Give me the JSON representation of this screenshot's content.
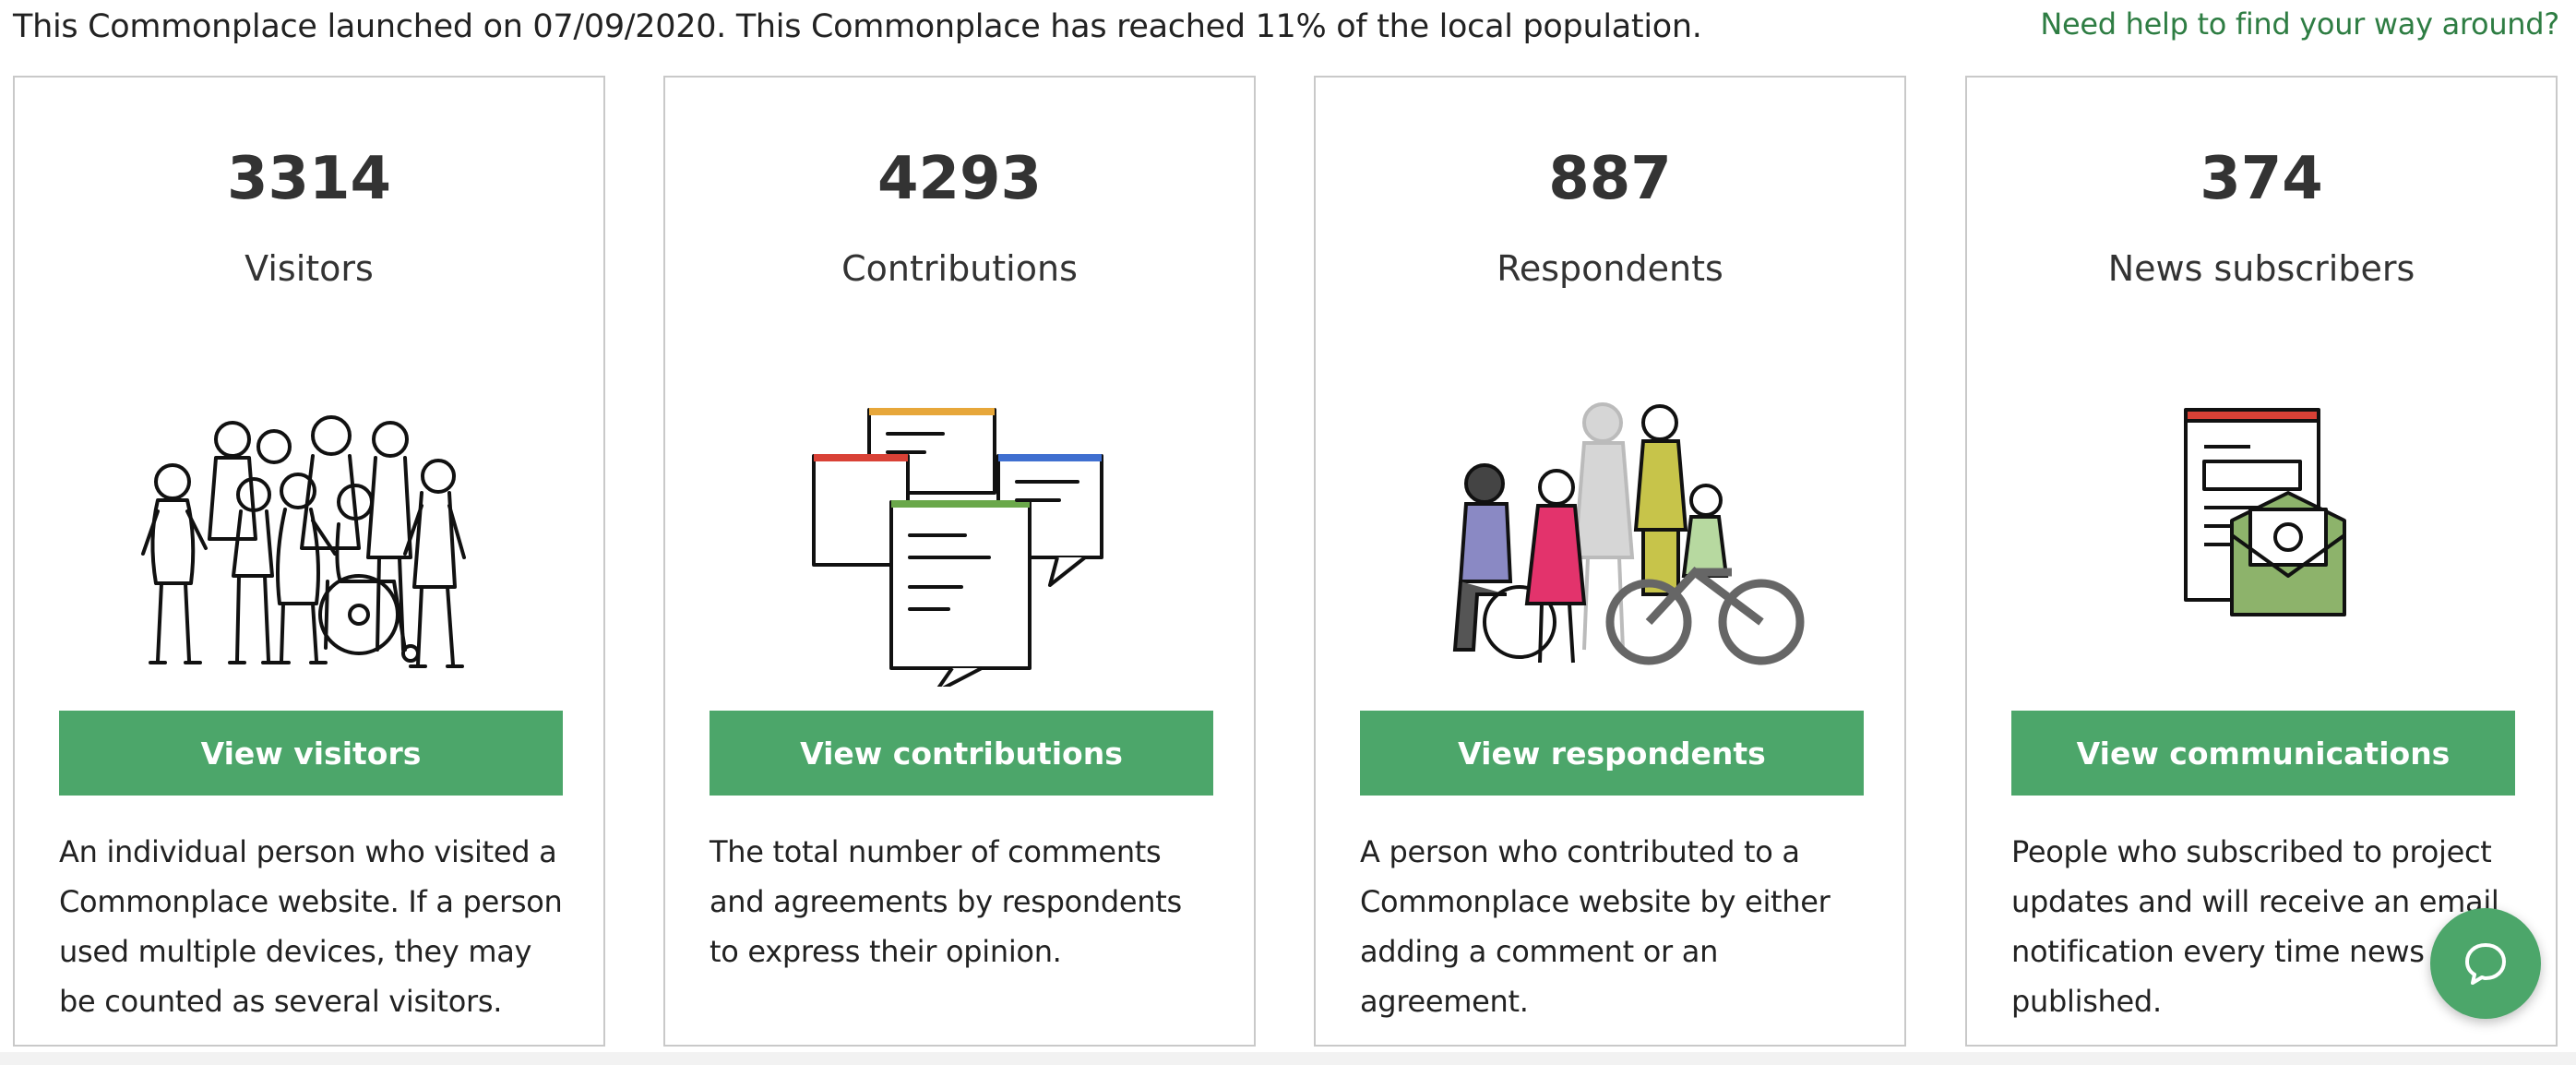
{
  "header": {
    "launch_text": "This Commonplace launched on 07/09/2020. This Commonplace has reached 11% of the local population.",
    "help_link": "Need help to find your way around?"
  },
  "cards": [
    {
      "value": "3314",
      "label": "Visitors",
      "illustration": "crowd-of-people-illustration",
      "button": "View visitors",
      "description": "An individual person who visited a Commonplace website. If a person used multiple devices, they may be counted as several visitors."
    },
    {
      "value": "4293",
      "label": "Contributions",
      "illustration": "speech-bubbles-illustration",
      "button": "View contributions",
      "description": "The total number of comments and agreements by respondents to express their opinion."
    },
    {
      "value": "887",
      "label": "Respondents",
      "illustration": "diverse-people-illustration",
      "button": "View respondents",
      "description": "A person who contributed to a Commonplace website by either adding a comment or an agreement."
    },
    {
      "value": "374",
      "label": "News subscribers",
      "illustration": "newspaper-envelope-illustration",
      "button": "View communications",
      "description": "People who subscribed to project updates and will receive an email notification every time news are published."
    }
  ],
  "chat": {
    "icon": "chat-bubble-icon"
  },
  "colors": {
    "accent": "#4ca66a",
    "link": "#2e7d43",
    "text": "#222222",
    "border": "#c9c9c9"
  }
}
